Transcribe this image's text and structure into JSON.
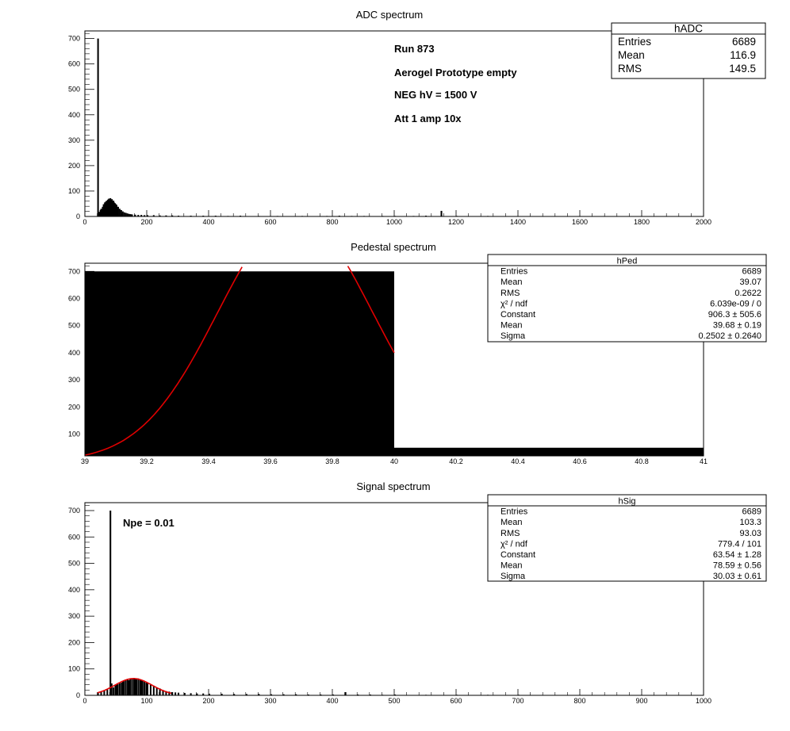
{
  "chart_data": [
    {
      "type": "bar",
      "title": "ADC spectrum",
      "xlim": [
        0,
        2000
      ],
      "ylim": [
        0,
        730
      ],
      "xticks": [
        "0",
        "200",
        "400",
        "600",
        "800",
        "1000",
        "1200",
        "1400",
        "1600",
        "1800",
        "2000"
      ],
      "yticks": [
        "0",
        "100",
        "200",
        "300",
        "400",
        "500",
        "600",
        "700"
      ],
      "annotations": [
        "Run  873",
        "Aerogel Prototype empty",
        "NEG hV = 1500 V",
        "Att 1 amp 10x"
      ],
      "stats": {
        "name": "hADC",
        "rows": [
          {
            "label": "Entries",
            "value": "6689"
          },
          {
            "label": "Mean",
            "value": "116.9"
          },
          {
            "label": "RMS",
            "value": "149.5"
          }
        ]
      },
      "bins": [
        [
          40,
          700
        ],
        [
          42,
          10
        ],
        [
          45,
          18
        ],
        [
          48,
          25
        ],
        [
          50,
          30
        ],
        [
          52,
          26
        ],
        [
          55,
          38
        ],
        [
          58,
          48
        ],
        [
          60,
          45
        ],
        [
          62,
          55
        ],
        [
          65,
          58
        ],
        [
          68,
          62
        ],
        [
          70,
          60
        ],
        [
          72,
          66
        ],
        [
          75,
          70
        ],
        [
          78,
          63
        ],
        [
          80,
          72
        ],
        [
          82,
          66
        ],
        [
          85,
          68
        ],
        [
          88,
          60
        ],
        [
          90,
          62
        ],
        [
          92,
          55
        ],
        [
          95,
          52
        ],
        [
          98,
          48
        ],
        [
          100,
          45
        ],
        [
          105,
          38
        ],
        [
          110,
          30
        ],
        [
          115,
          25
        ],
        [
          120,
          20
        ],
        [
          125,
          16
        ],
        [
          130,
          14
        ],
        [
          135,
          12
        ],
        [
          140,
          10
        ],
        [
          145,
          9
        ],
        [
          150,
          8
        ],
        [
          160,
          7
        ],
        [
          170,
          6
        ],
        [
          180,
          6
        ],
        [
          190,
          5
        ],
        [
          200,
          5
        ],
        [
          220,
          5
        ],
        [
          240,
          4
        ],
        [
          260,
          4
        ],
        [
          280,
          4
        ],
        [
          300,
          3
        ],
        [
          340,
          3
        ],
        [
          380,
          3
        ],
        [
          420,
          3
        ],
        [
          460,
          2
        ],
        [
          500,
          3
        ],
        [
          560,
          2
        ],
        [
          620,
          2
        ],
        [
          700,
          2
        ],
        [
          780,
          2
        ],
        [
          820,
          3
        ],
        [
          860,
          2
        ],
        [
          900,
          2
        ],
        [
          960,
          2
        ],
        [
          1000,
          2
        ],
        [
          1060,
          2
        ],
        [
          1100,
          3
        ],
        [
          1150,
          22
        ],
        [
          1200,
          2
        ],
        [
          1300,
          2
        ],
        [
          1400,
          1
        ],
        [
          1500,
          1
        ],
        [
          1600,
          1
        ],
        [
          1800,
          1
        ]
      ]
    },
    {
      "type": "bar",
      "title": "Pedestal spectrum",
      "xlim": [
        39,
        41
      ],
      "ylim": [
        20,
        730
      ],
      "xticks": [
        "39",
        "39.2",
        "39.4",
        "39.6",
        "39.8",
        "40",
        "40.2",
        "40.4",
        "40.6",
        "40.8",
        "41"
      ],
      "yticks": [
        "100",
        "200",
        "300",
        "400",
        "500",
        "600",
        "700"
      ],
      "stats": {
        "name": "hPed",
        "rows": [
          {
            "label": "Entries",
            "value": "6689"
          },
          {
            "label": "Mean",
            "value": "39.07"
          },
          {
            "label": "RMS",
            "value": "0.2622"
          },
          {
            "label": "χ² / ndf",
            "value": "6.039e-09 / 0"
          },
          {
            "label": "Constant",
            "value": "906.3 ± 505.6"
          },
          {
            "label": "Mean",
            "value": "39.68 ± 0.19"
          },
          {
            "label": "Sigma",
            "value": "0.2502 ± 0.2640"
          }
        ]
      },
      "bins": [
        {
          "x0": 39,
          "x1": 40,
          "y": 700
        },
        {
          "x0": 40,
          "x1": 41,
          "y": 50
        }
      ],
      "fit": {
        "constant": 906.3,
        "mean": 39.68,
        "sigma": 0.2502,
        "range": [
          39,
          40
        ],
        "color": "#e00000"
      }
    },
    {
      "type": "bar",
      "title": "Signal spectrum",
      "xlim": [
        0,
        1000
      ],
      "ylim": [
        0,
        730
      ],
      "xticks": [
        "0",
        "100",
        "200",
        "300",
        "400",
        "500",
        "600",
        "700",
        "800",
        "900",
        "1000"
      ],
      "yticks": [
        "0",
        "100",
        "200",
        "300",
        "400",
        "500",
        "600",
        "700"
      ],
      "annotations": [
        "Npe = 0.01"
      ],
      "stats": {
        "name": "hSig",
        "rows": [
          {
            "label": "Entries",
            "value": "6689"
          },
          {
            "label": "Mean",
            "value": "103.3"
          },
          {
            "label": "RMS",
            "value": "93.03"
          },
          {
            "label": "χ² / ndf",
            "value": "779.4 / 101"
          },
          {
            "label": "Constant",
            "value": "63.54 ± 1.28"
          },
          {
            "label": "Mean",
            "value": "78.59 ± 0.56"
          },
          {
            "label": "Sigma",
            "value": "30.03 ± 0.61"
          }
        ]
      },
      "bins": [
        [
          20,
          10
        ],
        [
          25,
          15
        ],
        [
          30,
          18
        ],
        [
          35,
          22
        ],
        [
          40,
          700
        ],
        [
          42,
          45
        ],
        [
          45,
          30
        ],
        [
          48,
          38
        ],
        [
          50,
          40
        ],
        [
          52,
          42
        ],
        [
          55,
          46
        ],
        [
          58,
          48
        ],
        [
          60,
          52
        ],
        [
          62,
          54
        ],
        [
          65,
          58
        ],
        [
          68,
          60
        ],
        [
          70,
          57
        ],
        [
          72,
          62
        ],
        [
          75,
          64
        ],
        [
          78,
          66
        ],
        [
          80,
          62
        ],
        [
          82,
          60
        ],
        [
          85,
          64
        ],
        [
          88,
          60
        ],
        [
          90,
          58
        ],
        [
          92,
          55
        ],
        [
          95,
          52
        ],
        [
          98,
          48
        ],
        [
          100,
          46
        ],
        [
          105,
          40
        ],
        [
          110,
          36
        ],
        [
          115,
          30
        ],
        [
          120,
          26
        ],
        [
          125,
          20
        ],
        [
          130,
          16
        ],
        [
          135,
          14
        ],
        [
          140,
          12
        ],
        [
          145,
          11
        ],
        [
          150,
          10
        ],
        [
          160,
          9
        ],
        [
          170,
          8
        ],
        [
          180,
          7
        ],
        [
          190,
          7
        ],
        [
          200,
          6
        ],
        [
          220,
          6
        ],
        [
          240,
          5
        ],
        [
          260,
          5
        ],
        [
          280,
          5
        ],
        [
          300,
          4
        ],
        [
          320,
          4
        ],
        [
          340,
          4
        ],
        [
          360,
          3
        ],
        [
          380,
          3
        ],
        [
          400,
          3
        ],
        [
          420,
          12
        ],
        [
          440,
          3
        ],
        [
          460,
          3
        ],
        [
          480,
          2
        ],
        [
          500,
          3
        ],
        [
          550,
          2
        ],
        [
          600,
          2
        ],
        [
          650,
          2
        ],
        [
          700,
          2
        ],
        [
          750,
          1
        ],
        [
          800,
          1
        ],
        [
          850,
          1
        ],
        [
          900,
          1
        ],
        [
          950,
          1
        ]
      ],
      "fit": {
        "constant": 63.54,
        "mean": 78.59,
        "sigma": 30.03,
        "range": [
          20,
          140
        ],
        "color": "#e00000"
      }
    }
  ]
}
